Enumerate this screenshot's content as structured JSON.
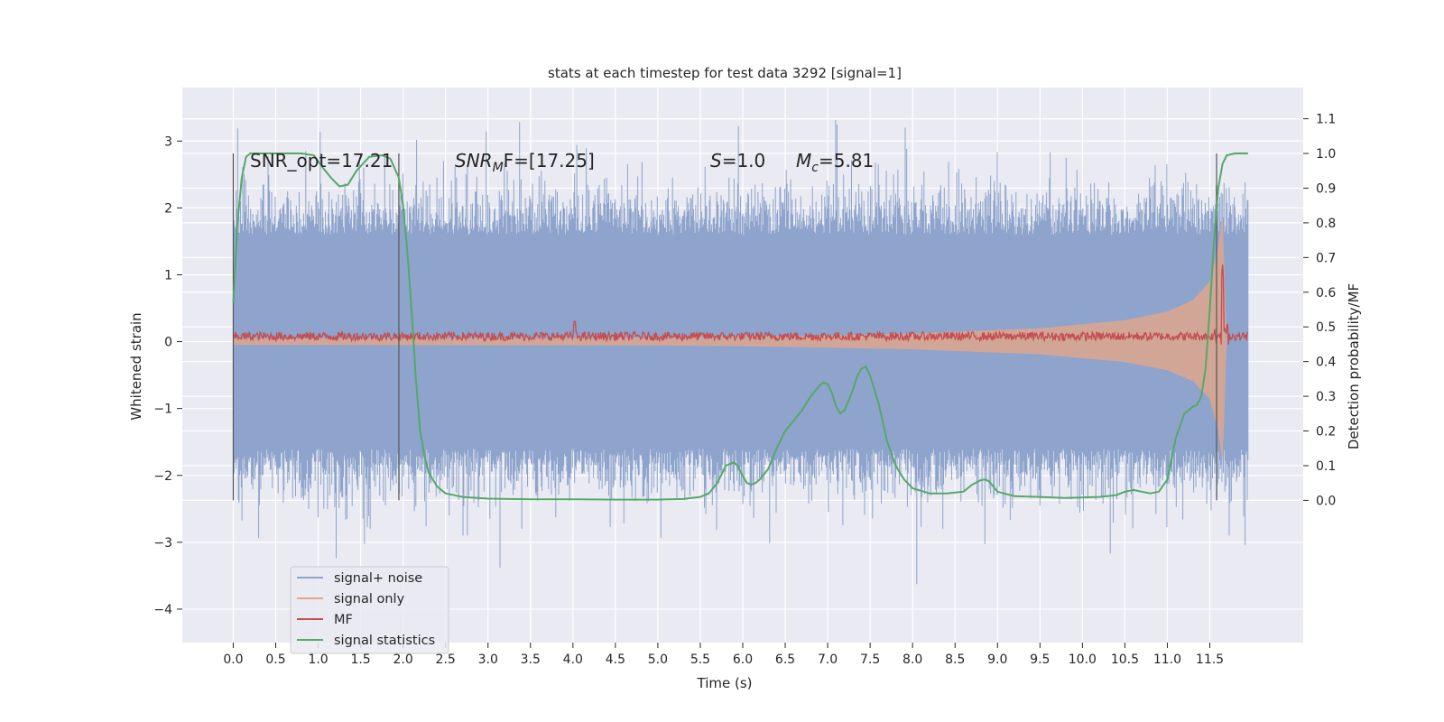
{
  "chart_data": {
    "type": "line",
    "title": "stats at each timestep for test data 3292 [signal=1]",
    "xlabel": "Time (s)",
    "ylabel": "Whitened strain",
    "y2label": "Detection probability/MF",
    "xlim": [
      -0.6,
      12.6
    ],
    "ylim": [
      -4.5,
      3.8
    ],
    "y2lim": [
      -0.41,
      1.19
    ],
    "x_ticks": [
      0.0,
      0.5,
      1.0,
      1.5,
      2.0,
      2.5,
      3.0,
      3.5,
      4.0,
      4.5,
      5.0,
      5.5,
      6.0,
      6.5,
      7.0,
      7.5,
      8.0,
      8.5,
      9.0,
      9.5,
      10.0,
      10.5,
      11.0,
      11.5
    ],
    "x_tick_labels": [
      "0.0",
      "0.5",
      "1.0",
      "1.5",
      "2.0",
      "2.5",
      "3.0",
      "3.5",
      "4.0",
      "4.5",
      "5.0",
      "5.5",
      "6.0",
      "6.5",
      "7.0",
      "7.5",
      "8.0",
      "8.5",
      "9.0",
      "9.5",
      "10.0",
      "10.5",
      "11.0",
      "11.5"
    ],
    "y_ticks": [
      -4,
      -3,
      -2,
      -1,
      0,
      1,
      2,
      3
    ],
    "y_tick_labels": [
      "−4",
      "−3",
      "−2",
      "−1",
      "0",
      "1",
      "2",
      "3"
    ],
    "y2_ticks": [
      0.0,
      0.1,
      0.2,
      0.3,
      0.4,
      0.5,
      0.6,
      0.7,
      0.8,
      0.9,
      1.0,
      1.1
    ],
    "y2_tick_labels": [
      "0.0",
      "0.1",
      "0.2",
      "0.3",
      "0.4",
      "0.5",
      "0.6",
      "0.7",
      "0.8",
      "0.9",
      "1.0",
      "1.1"
    ],
    "grid": true,
    "legend_position": "lower-left",
    "annotations": {
      "snr_opt": "SNR_opt=17.21",
      "snr_mf_main": "SNR",
      "snr_mf_sub": "M",
      "snr_mf_rest": "F=[17.25]",
      "s_var": "S",
      "s_rest": "=1.0",
      "mc_var": "M",
      "mc_sub": "c",
      "mc_rest": "=5.81"
    },
    "vertical_lines_x": [
      0.0,
      1.95,
      11.58
    ],
    "series": [
      {
        "name": "signal+ noise",
        "color": "#8ea4cc",
        "description_level": "noise band with envelope roughly ±2 to ±3"
      },
      {
        "name": "signal only",
        "color": "#e3a68a",
        "envelope_x": [
          0.0,
          5.0,
          6.5,
          8.0,
          9.5,
          10.5,
          11.0,
          11.3,
          11.5,
          11.6,
          11.65,
          11.7
        ],
        "envelope_y": [
          0.05,
          0.06,
          0.08,
          0.12,
          0.2,
          0.32,
          0.45,
          0.62,
          0.9,
          1.4,
          1.9,
          0.0
        ]
      },
      {
        "name": "MF",
        "color": "#c44e52",
        "baseline": 0.08,
        "spikes": [
          [
            4.02,
            0.3
          ],
          [
            11.65,
            1.0
          ]
        ]
      },
      {
        "name": "signal statistics",
        "color": "#55a868",
        "axis": "right",
        "x": [
          0.0,
          0.05,
          0.1,
          0.15,
          0.2,
          0.3,
          0.5,
          0.8,
          0.95,
          1.05,
          1.15,
          1.25,
          1.35,
          1.45,
          1.6,
          1.75,
          1.85,
          1.95,
          2.0,
          2.05,
          2.1,
          2.15,
          2.2,
          2.25,
          2.3,
          2.4,
          2.5,
          2.7,
          3.0,
          3.5,
          4.0,
          4.5,
          5.0,
          5.3,
          5.5,
          5.6,
          5.7,
          5.8,
          5.9,
          5.95,
          6.0,
          6.05,
          6.1,
          6.15,
          6.2,
          6.3,
          6.4,
          6.5,
          6.6,
          6.7,
          6.8,
          6.9,
          6.95,
          7.0,
          7.05,
          7.1,
          7.15,
          7.2,
          7.3,
          7.35,
          7.4,
          7.45,
          7.5,
          7.6,
          7.7,
          7.8,
          7.9,
          8.0,
          8.2,
          8.4,
          8.6,
          8.7,
          8.8,
          8.85,
          8.9,
          8.95,
          9.0,
          9.2,
          9.5,
          9.8,
          10.2,
          10.4,
          10.5,
          10.6,
          10.7,
          10.8,
          10.9,
          11.0,
          11.1,
          11.2,
          11.3,
          11.35,
          11.4,
          11.45,
          11.5,
          11.55,
          11.6,
          11.65,
          11.7,
          11.8,
          11.9,
          11.95
        ],
        "y": [
          0.57,
          0.8,
          0.93,
          0.99,
          1.0,
          1.0,
          1.0,
          1.0,
          0.995,
          0.96,
          0.93,
          0.905,
          0.91,
          0.95,
          0.99,
          0.995,
          0.985,
          0.93,
          0.85,
          0.72,
          0.55,
          0.35,
          0.2,
          0.13,
          0.08,
          0.04,
          0.02,
          0.01,
          0.005,
          0.003,
          0.003,
          0.002,
          0.002,
          0.004,
          0.01,
          0.02,
          0.05,
          0.1,
          0.11,
          0.095,
          0.07,
          0.05,
          0.045,
          0.05,
          0.06,
          0.09,
          0.15,
          0.2,
          0.23,
          0.26,
          0.3,
          0.33,
          0.34,
          0.335,
          0.31,
          0.27,
          0.25,
          0.26,
          0.32,
          0.36,
          0.38,
          0.385,
          0.36,
          0.28,
          0.17,
          0.1,
          0.06,
          0.035,
          0.02,
          0.02,
          0.025,
          0.045,
          0.058,
          0.06,
          0.055,
          0.04,
          0.025,
          0.012,
          0.01,
          0.007,
          0.01,
          0.015,
          0.025,
          0.03,
          0.025,
          0.02,
          0.025,
          0.06,
          0.18,
          0.25,
          0.27,
          0.275,
          0.3,
          0.38,
          0.55,
          0.75,
          0.9,
          0.97,
          0.995,
          1.0,
          1.0,
          1.0
        ]
      }
    ]
  }
}
